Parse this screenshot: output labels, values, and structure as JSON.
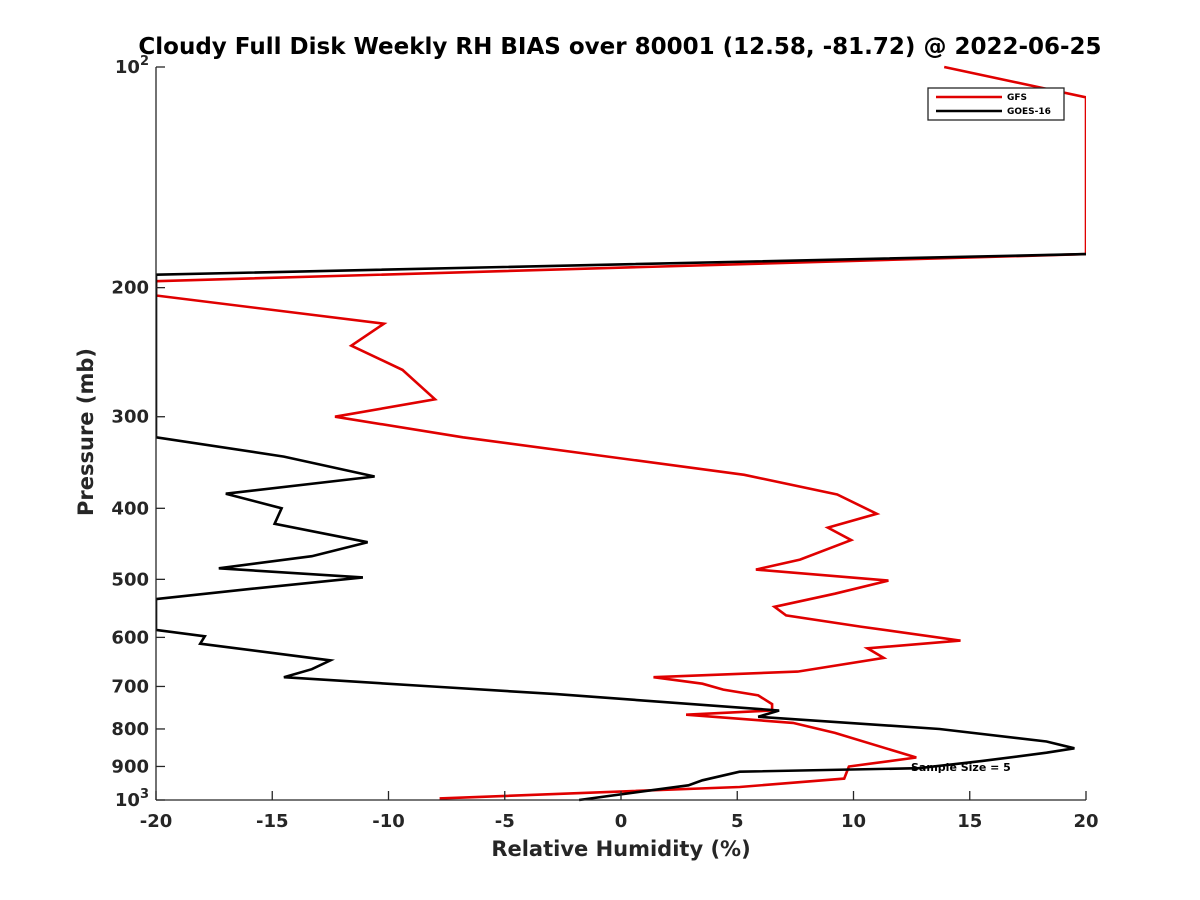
{
  "chart_data": {
    "type": "line",
    "title": "Cloudy Full Disk Weekly RH BIAS over 80001 (12.58, -81.72) @ 2022-06-25",
    "xlabel": "Relative Humidity (%)",
    "ylabel": "Pressure (mb)",
    "xlim": [
      -20,
      20
    ],
    "ylim": [
      100,
      1000
    ],
    "y_scale": "log",
    "y_reversed": true,
    "grid": false,
    "legend_placement": "top-right",
    "x_ticks": [
      "-20",
      "-15",
      "-10",
      "-5",
      "0",
      "5",
      "10",
      "15",
      "20"
    ],
    "y_ticks": [
      {
        "value": 100,
        "base": "10",
        "exp": "2"
      },
      {
        "value": 200,
        "label": "200"
      },
      {
        "value": 300,
        "label": "300"
      },
      {
        "value": 400,
        "label": "400"
      },
      {
        "value": 500,
        "label": "500"
      },
      {
        "value": 600,
        "label": "600"
      },
      {
        "value": 700,
        "label": "700"
      },
      {
        "value": 800,
        "label": "800"
      },
      {
        "value": 900,
        "label": "900"
      },
      {
        "value": 1000,
        "base": "10",
        "exp": "3"
      }
    ],
    "annotation": "Sample Size = 5",
    "series": [
      {
        "name": "GFS",
        "color": "#e00000",
        "points": [
          [
            13.9,
            100
          ],
          [
            20,
            110
          ],
          [
            20,
            180
          ],
          [
            -20,
            196
          ],
          [
            -20,
            205
          ],
          [
            -10.2,
            224
          ],
          [
            -11.6,
            240
          ],
          [
            -9.4,
            259
          ],
          [
            -8.0,
            284
          ],
          [
            -12.3,
            300
          ],
          [
            -6.8,
            320
          ],
          [
            5.3,
            360
          ],
          [
            9.3,
            383
          ],
          [
            11.0,
            407
          ],
          [
            8.9,
            425
          ],
          [
            9.9,
            442
          ],
          [
            7.7,
            470
          ],
          [
            5.8,
            485
          ],
          [
            11.5,
            502
          ],
          [
            9.2,
            523
          ],
          [
            6.6,
            545
          ],
          [
            7.1,
            560
          ],
          [
            10.3,
            580
          ],
          [
            14.6,
            606
          ],
          [
            10.6,
            621
          ],
          [
            11.3,
            640
          ],
          [
            7.6,
            668
          ],
          [
            1.4,
            680
          ],
          [
            3.5,
            694
          ],
          [
            4.4,
            707
          ],
          [
            5.9,
            720
          ],
          [
            6.5,
            740
          ],
          [
            6.5,
            755
          ],
          [
            2.8,
            765
          ],
          [
            7.4,
            785
          ],
          [
            9.2,
            810
          ],
          [
            12.7,
            875
          ],
          [
            9.8,
            900
          ],
          [
            9.6,
            935
          ],
          [
            5.1,
            960
          ],
          [
            -7.8,
            995
          ]
        ]
      },
      {
        "name": "GOES-16",
        "color": "#000000",
        "points": [
          [
            20,
            180
          ],
          [
            -20,
            192
          ],
          [
            -20,
            320
          ],
          [
            -14.5,
            340
          ],
          [
            -10.6,
            362
          ],
          [
            -17.0,
            382
          ],
          [
            -14.6,
            400
          ],
          [
            -14.9,
            420
          ],
          [
            -10.9,
            445
          ],
          [
            -13.3,
            465
          ],
          [
            -17.3,
            483
          ],
          [
            -11.1,
            497
          ],
          [
            -15.9,
            515
          ],
          [
            -20,
            532
          ],
          [
            -20,
            586
          ],
          [
            -17.9,
            598
          ],
          [
            -18.1,
            612
          ],
          [
            -12.5,
            645
          ],
          [
            -13.3,
            663
          ],
          [
            -14.5,
            680
          ],
          [
            -8.1,
            700
          ],
          [
            -2.8,
            717
          ],
          [
            6.8,
            755
          ],
          [
            5.9,
            770
          ],
          [
            13.7,
            800
          ],
          [
            18.3,
            832
          ],
          [
            19.5,
            850
          ],
          [
            18.3,
            862
          ],
          [
            15.5,
            885
          ],
          [
            12.8,
            905
          ],
          [
            5.1,
            915
          ],
          [
            3.5,
            940
          ],
          [
            2.9,
            955
          ],
          [
            -1.8,
            1000
          ]
        ]
      }
    ]
  }
}
